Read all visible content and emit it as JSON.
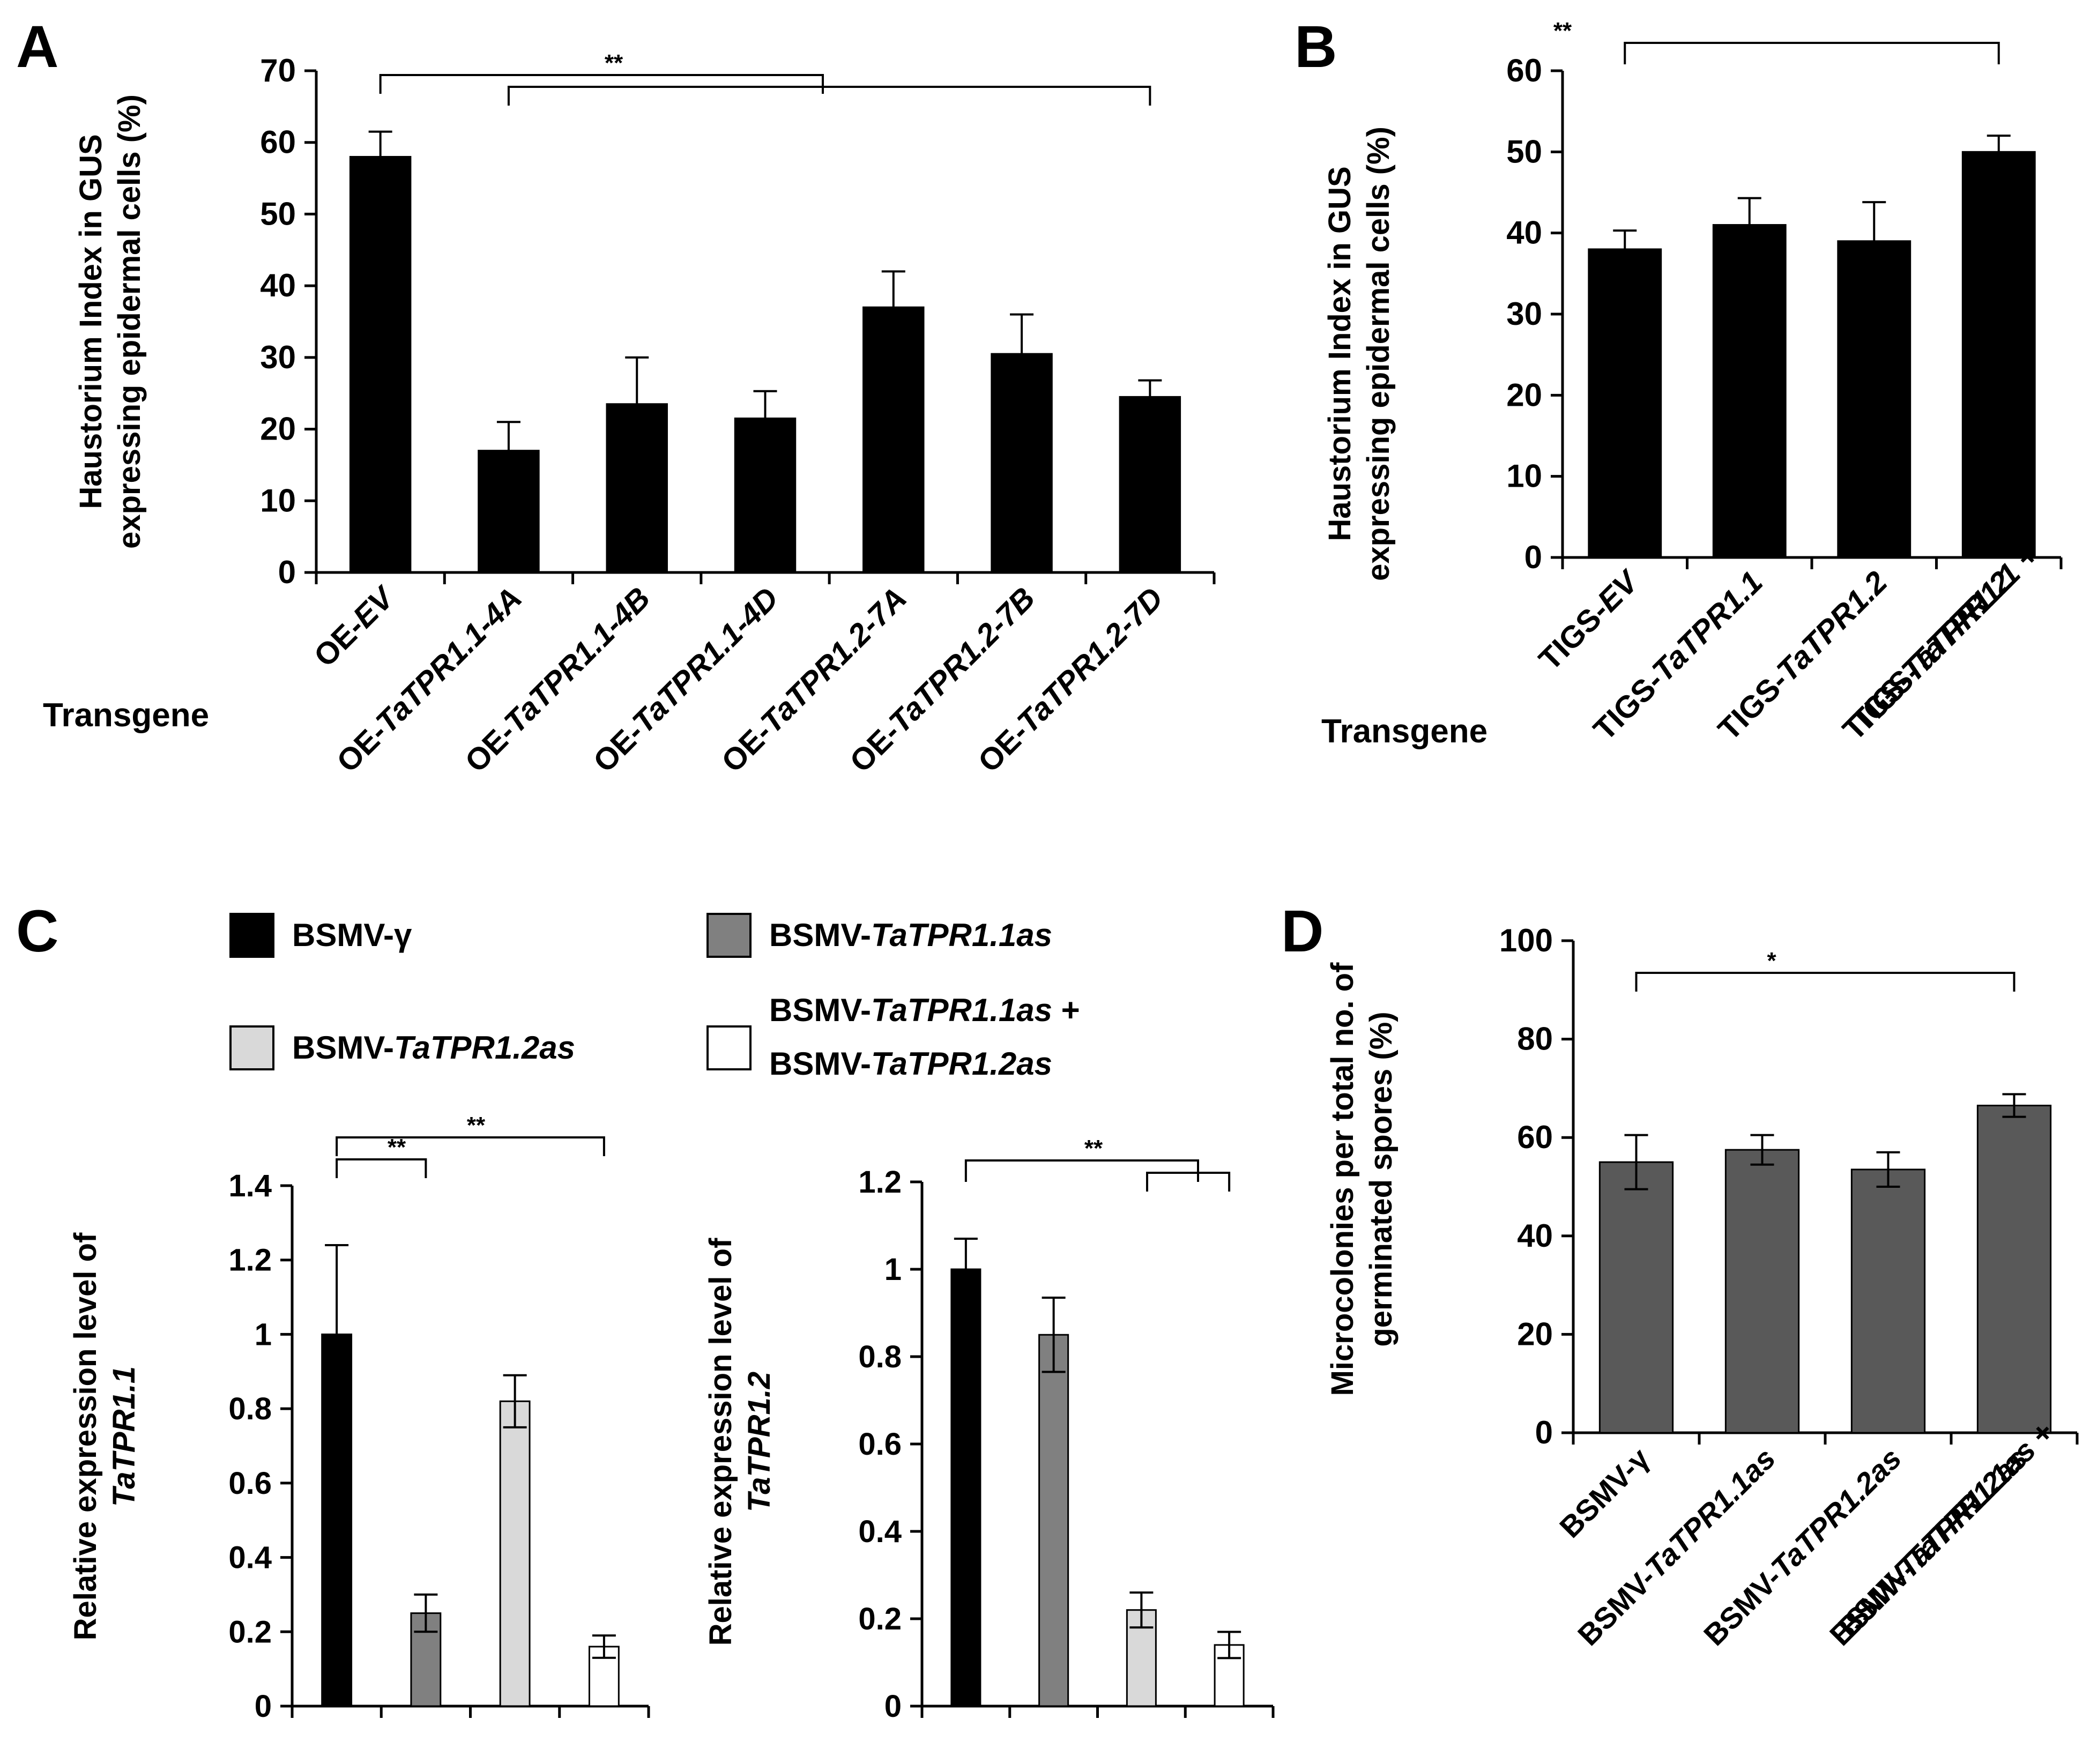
{
  "chart_data": [
    {
      "panel": "A",
      "type": "bar",
      "categories": [
        [
          {
            "t": "OE-"
          },
          {
            "t": "EV",
            "i": true
          }
        ],
        [
          {
            "t": "OE-"
          },
          {
            "t": "TaTPR1.1-4A",
            "i": true
          }
        ],
        [
          {
            "t": "OE-"
          },
          {
            "t": "TaTPR1.1-4B",
            "i": true
          }
        ],
        [
          {
            "t": "OE-"
          },
          {
            "t": "TaTPR1.1-4D",
            "i": true
          }
        ],
        [
          {
            "t": "OE-"
          },
          {
            "t": "TaTPR1.2-7A",
            "i": true
          }
        ],
        [
          {
            "t": "OE-"
          },
          {
            "t": "TaTPR1.2-7B",
            "i": true
          }
        ],
        [
          {
            "t": "OE-"
          },
          {
            "t": "TaTPR1.2-7D",
            "i": true
          }
        ]
      ],
      "values": [
        58,
        17,
        23.5,
        21.5,
        37,
        30.5,
        24.5
      ],
      "errors": [
        3.5,
        4,
        6.5,
        3.8,
        5,
        5.5,
        2.3
      ],
      "ylim": [
        0,
        70
      ],
      "yticks": [
        0,
        10,
        20,
        30,
        40,
        50,
        60,
        70
      ],
      "ylabel": [
        "Haustorium Index in GUS",
        "expressing  epidermal cells (%)"
      ],
      "xlabel": "Transgene",
      "significance": "**",
      "bar_color": "#000000"
    },
    {
      "panel": "B",
      "type": "bar",
      "categories": [
        [
          [
            {
              "t": "TIGS-"
            },
            {
              "t": "EV",
              "i": true
            }
          ]
        ],
        [
          [
            {
              "t": "TIGS-"
            },
            {
              "t": "TaTPR1.1",
              "i": true
            }
          ]
        ],
        [
          [
            {
              "t": "TIGS-"
            },
            {
              "t": "TaTPR1.2",
              "i": true
            }
          ]
        ],
        [
          [
            {
              "t": "TIGS-"
            },
            {
              "t": "TaTPR1.1",
              "i": true
            },
            {
              "t": " +"
            }
          ],
          [
            {
              "t": "TIGS-"
            },
            {
              "t": "TaTPR1.2",
              "i": true
            }
          ]
        ]
      ],
      "values": [
        38,
        41,
        39,
        50
      ],
      "errors": [
        2.3,
        3.3,
        4.8,
        2
      ],
      "ylim": [
        0,
        60
      ],
      "yticks": [
        0,
        10,
        20,
        30,
        40,
        50,
        60
      ],
      "ylabel": [
        "Haustorium Index in GUS",
        "expressing  epidermal cells (%)"
      ],
      "xlabel": "Transgene",
      "significance": "**",
      "bar_color": "#000000"
    },
    {
      "panel": "C",
      "type": "bar",
      "legend": [
        {
          "color": "#000000",
          "lines": [
            [
              {
                "t": "BSMV-γ"
              }
            ]
          ]
        },
        {
          "color": "#808080",
          "lines": [
            [
              {
                "t": "BSMV-"
              },
              {
                "t": "TaTPR1.1as",
                "i": true
              }
            ]
          ]
        },
        {
          "color": "#d9d9d9",
          "lines": [
            [
              {
                "t": "BSMV-"
              },
              {
                "t": "TaTPR1.2as",
                "i": true
              }
            ]
          ]
        },
        {
          "color": "#ffffff",
          "lines": [
            [
              {
                "t": "BSMV-"
              },
              {
                "t": "TaTPR1.1as",
                "i": true
              },
              {
                "t": " +"
              }
            ],
            [
              {
                "t": "BSMV-"
              },
              {
                "t": "TaTPR1.2as",
                "i": true
              }
            ]
          ]
        }
      ],
      "subplots": [
        {
          "ylabel": [
            [
              {
                "t": "Relative expression level of"
              }
            ],
            [
              {
                "t": "TaTPR1.1",
                "i": true
              }
            ]
          ],
          "values": [
            1.0,
            0.25,
            0.82,
            0.16
          ],
          "errors": [
            0.24,
            0.05,
            0.07,
            0.03
          ],
          "ylim": [
            0,
            1.4
          ],
          "yticks": [
            "0",
            "0.2",
            "0.4",
            "0.6",
            "0.8",
            "1",
            "1.2",
            "1.4"
          ],
          "significance": [
            "**",
            "**"
          ]
        },
        {
          "ylabel": [
            [
              {
                "t": "Relative expression level of"
              }
            ],
            [
              {
                "t": "TaTPR1.2",
                "i": true
              }
            ]
          ],
          "values": [
            1.0,
            0.85,
            0.22,
            0.14
          ],
          "errors": [
            0.07,
            0.085,
            0.04,
            0.03
          ],
          "ylim": [
            0,
            1.2
          ],
          "yticks": [
            "0",
            "0.2",
            "0.4",
            "0.6",
            "0.8",
            "1",
            "1.2"
          ],
          "significance": "**"
        }
      ]
    },
    {
      "panel": "D",
      "type": "bar",
      "categories": [
        [
          [
            {
              "t": "BSMV-γ"
            }
          ]
        ],
        [
          [
            {
              "t": "BSMV-"
            },
            {
              "t": "TaTPR1.1as",
              "i": true
            }
          ]
        ],
        [
          [
            {
              "t": "BSMV-"
            },
            {
              "t": "TaTPR1.2as",
              "i": true
            }
          ]
        ],
        [
          [
            {
              "t": "BSMV-"
            },
            {
              "t": "TaTPR1.1as",
              "i": true
            },
            {
              "t": " +"
            }
          ],
          [
            {
              "t": "BSMV-"
            },
            {
              "t": "TaTPR1.2as",
              "i": true
            }
          ]
        ]
      ],
      "values": [
        55,
        57.5,
        53.5,
        66.5
      ],
      "errors": [
        5.5,
        3,
        3.5,
        2.3
      ],
      "ylim": [
        0,
        100
      ],
      "yticks": [
        0,
        20,
        40,
        60,
        80,
        100
      ],
      "ylabel": [
        "Microcolonies per total no. of",
        "germinated spores (%)"
      ],
      "significance": "*",
      "bar_color": "#595959"
    }
  ]
}
